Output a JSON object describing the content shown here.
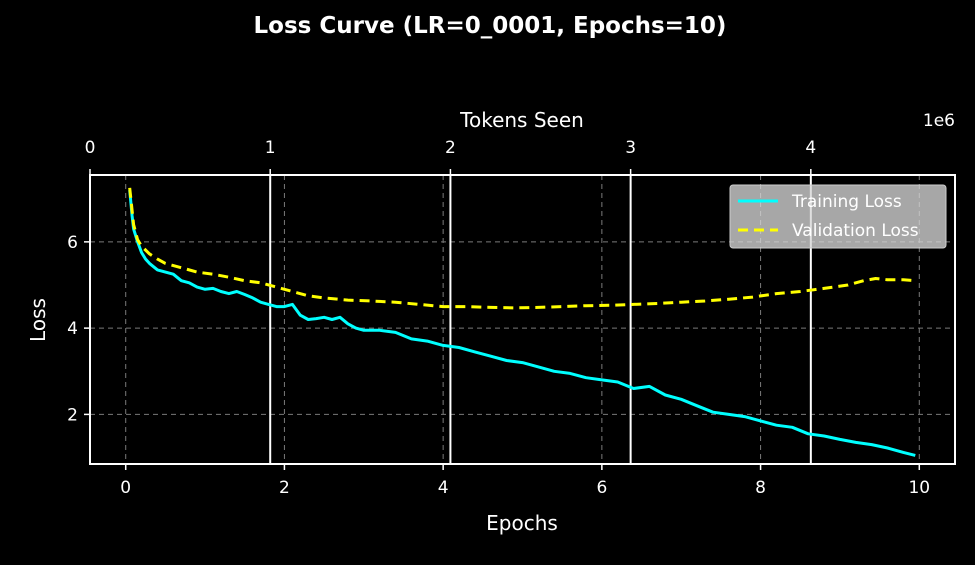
{
  "chart_data": {
    "type": "line",
    "title": "Loss Curve (LR=0_0001, Epochs=10)",
    "xlabel": "Epochs",
    "ylabel": "Loss",
    "top_xlabel": "Tokens Seen",
    "top_x_exponent": "1e6",
    "xlim": [
      -0.45,
      10.45
    ],
    "ylim": [
      0.85,
      7.55
    ],
    "top_xlim": [
      -0.0,
      4.8
    ],
    "x_ticks": [
      0,
      2,
      4,
      6,
      8,
      10
    ],
    "y_ticks": [
      2,
      4,
      6
    ],
    "top_x_ticks": [
      0,
      1,
      2,
      3,
      4
    ],
    "grid": true,
    "legend_position": "upper right",
    "colors": {
      "background": "#000000",
      "axes": "#ffffff",
      "grid": "#7a7a7a",
      "training": "#00ffff",
      "validation": "#ffff00",
      "legend_bg": "#d6d6d6"
    },
    "series": [
      {
        "name": "Training Loss",
        "style": "solid",
        "x": [
          0.05,
          0.08,
          0.1,
          0.15,
          0.2,
          0.25,
          0.3,
          0.4,
          0.5,
          0.6,
          0.7,
          0.8,
          0.9,
          1.0,
          1.1,
          1.2,
          1.3,
          1.4,
          1.5,
          1.6,
          1.7,
          1.8,
          1.9,
          2.0,
          2.1,
          2.2,
          2.3,
          2.4,
          2.5,
          2.6,
          2.7,
          2.8,
          2.9,
          3.0,
          3.2,
          3.4,
          3.6,
          3.8,
          4.0,
          4.2,
          4.4,
          4.6,
          4.8,
          5.0,
          5.2,
          5.4,
          5.6,
          5.8,
          6.0,
          6.2,
          6.4,
          6.6,
          6.8,
          7.0,
          7.2,
          7.4,
          7.6,
          7.8,
          8.0,
          8.2,
          8.4,
          8.6,
          8.8,
          9.0,
          9.2,
          9.4,
          9.6,
          9.8,
          9.95
        ],
        "y": [
          7.2,
          6.6,
          6.3,
          6.0,
          5.75,
          5.6,
          5.5,
          5.35,
          5.3,
          5.25,
          5.1,
          5.05,
          4.95,
          4.9,
          4.92,
          4.85,
          4.8,
          4.85,
          4.78,
          4.7,
          4.6,
          4.55,
          4.5,
          4.5,
          4.55,
          4.3,
          4.2,
          4.22,
          4.25,
          4.2,
          4.25,
          4.1,
          4.0,
          3.95,
          3.95,
          3.9,
          3.75,
          3.7,
          3.6,
          3.55,
          3.45,
          3.35,
          3.25,
          3.2,
          3.1,
          3.0,
          2.95,
          2.85,
          2.8,
          2.75,
          2.6,
          2.65,
          2.45,
          2.35,
          2.2,
          2.05,
          2.0,
          1.95,
          1.85,
          1.75,
          1.7,
          1.55,
          1.5,
          1.42,
          1.35,
          1.3,
          1.22,
          1.12,
          1.05
        ]
      },
      {
        "name": "Validation Loss",
        "style": "dashed",
        "x": [
          0.05,
          0.1,
          0.15,
          0.2,
          0.3,
          0.4,
          0.5,
          0.7,
          0.9,
          1.1,
          1.3,
          1.5,
          1.7,
          1.9,
          2.1,
          2.3,
          2.5,
          2.8,
          3.1,
          3.4,
          3.7,
          4.0,
          4.3,
          4.6,
          4.9,
          5.2,
          5.5,
          5.8,
          6.1,
          6.4,
          6.7,
          7.0,
          7.3,
          7.6,
          7.9,
          8.2,
          8.5,
          8.8,
          9.1,
          9.3,
          9.45,
          9.6,
          9.8,
          9.95
        ],
        "y": [
          7.25,
          6.4,
          6.05,
          5.9,
          5.72,
          5.6,
          5.5,
          5.4,
          5.3,
          5.25,
          5.18,
          5.1,
          5.05,
          4.95,
          4.85,
          4.75,
          4.7,
          4.65,
          4.63,
          4.6,
          4.55,
          4.5,
          4.5,
          4.48,
          4.47,
          4.48,
          4.5,
          4.52,
          4.53,
          4.55,
          4.57,
          4.6,
          4.63,
          4.67,
          4.72,
          4.8,
          4.85,
          4.92,
          5.0,
          5.1,
          5.15,
          5.12,
          5.12,
          5.1
        ]
      }
    ]
  }
}
